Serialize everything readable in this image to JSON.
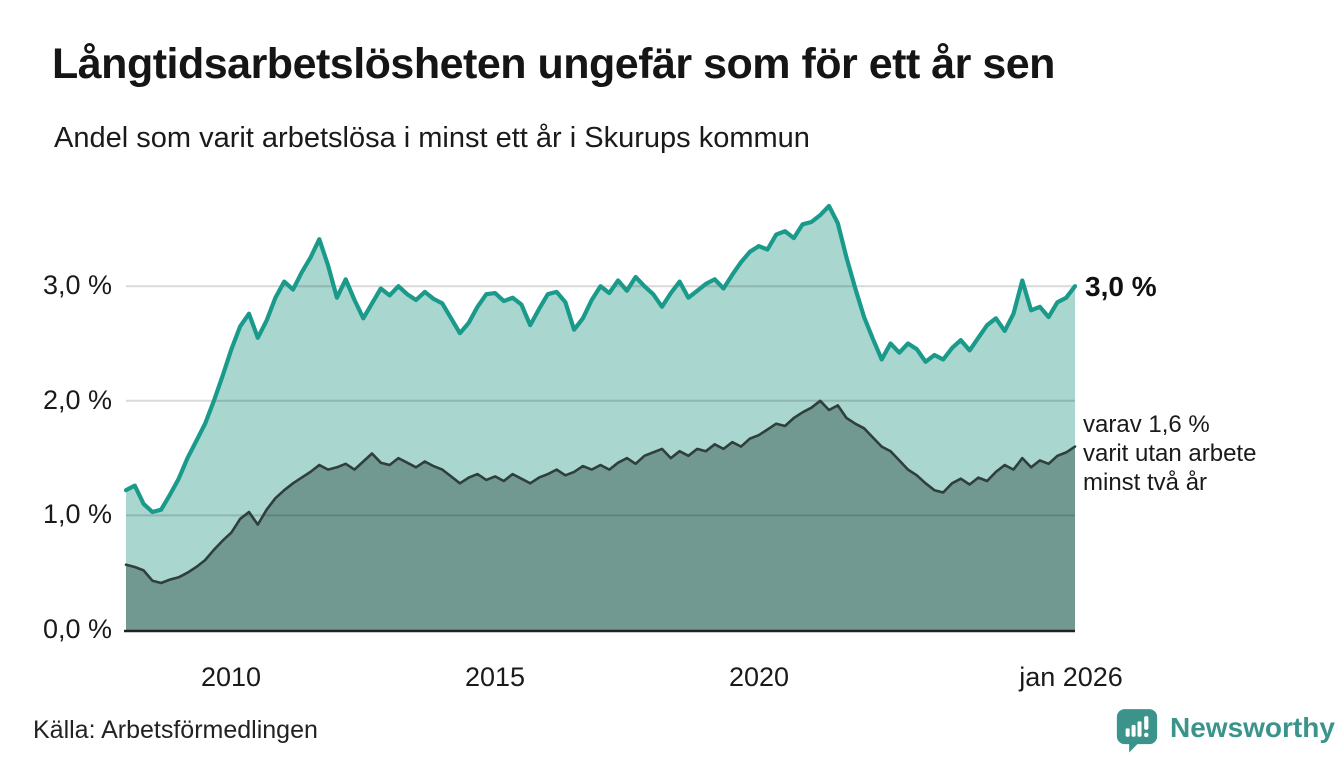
{
  "header": {
    "title": "Långtidsarbetslösheten ungefär som för ett år sen",
    "subtitle": "Andel som varit arbetslösa i minst ett år i Skurups kommun"
  },
  "footer": {
    "source": "Källa: Arbetsförmedlingen",
    "brand": "Newsworthy"
  },
  "colors": {
    "accent_teal": "#1a9a8a",
    "light_fill": "#a9d6cf",
    "dark_fill": "#719992",
    "dark_line": "#2f3f3b",
    "brand_teal": "#3a948c",
    "gridline": "#d8d8d8",
    "axis": "#222222",
    "text": "#1a1a1a"
  },
  "annotations": {
    "primary_end_label": "3,0 %",
    "secondary_line1": "varav 1,6 %",
    "secondary_line2": "varit utan arbete",
    "secondary_line3": "minst två år"
  },
  "chart_data": {
    "type": "area",
    "title": "Långtidsarbetslösheten ungefär som för ett år sen",
    "subtitle": "Andel som varit arbetslösa i minst ett år i Skurups kommun",
    "unit": "%",
    "x_start_year": 2008.0,
    "x_end_year": 2026.0,
    "points_per_year": 6,
    "x_tick_years": [
      2010,
      2015,
      2020,
      2026
    ],
    "x_tick_labels": [
      "2010",
      "2015",
      "2020",
      "jan 2026"
    ],
    "y_ticks": [
      "0,0 %",
      "1,0 %",
      "2,0 %",
      "3,0 %"
    ],
    "y_gridlines": [
      1,
      2,
      3
    ],
    "ylim": [
      0,
      3.75
    ],
    "grid": true,
    "legend": "none",
    "series": [
      {
        "name": "Andel arbetslösa minst ett år",
        "end_value": 3.0,
        "end_label": "3,0 %",
        "line_color": "#1a9a8a",
        "fill_color": "#a9d6cf",
        "values": [
          1.22,
          1.26,
          1.1,
          1.03,
          1.05,
          1.18,
          1.32,
          1.5,
          1.65,
          1.8,
          2.0,
          2.22,
          2.45,
          2.65,
          2.76,
          2.55,
          2.7,
          2.9,
          3.04,
          2.97,
          3.12,
          3.25,
          3.41,
          3.18,
          2.9,
          3.06,
          2.88,
          2.72,
          2.85,
          2.98,
          2.92,
          3.0,
          2.93,
          2.88,
          2.95,
          2.89,
          2.85,
          2.72,
          2.59,
          2.68,
          2.82,
          2.93,
          2.94,
          2.87,
          2.9,
          2.84,
          2.66,
          2.8,
          2.93,
          2.95,
          2.86,
          2.62,
          2.72,
          2.88,
          3.0,
          2.94,
          3.05,
          2.96,
          3.08,
          3.0,
          2.93,
          2.82,
          2.94,
          3.04,
          2.9,
          2.96,
          3.02,
          3.06,
          2.98,
          3.1,
          3.21,
          3.3,
          3.35,
          3.32,
          3.45,
          3.48,
          3.42,
          3.54,
          3.56,
          3.62,
          3.7,
          3.55,
          3.25,
          2.98,
          2.73,
          2.54,
          2.36,
          2.5,
          2.42,
          2.5,
          2.45,
          2.34,
          2.4,
          2.36,
          2.46,
          2.53,
          2.44,
          2.55,
          2.66,
          2.72,
          2.61,
          2.76,
          3.05,
          2.79,
          2.82,
          2.73,
          2.86,
          2.9,
          3.0
        ]
      },
      {
        "name": "varav utan arbete minst två år",
        "end_value": 1.6,
        "end_label": "1,6 %",
        "line_color": "#2f3f3b",
        "fill_color": "#719992",
        "values": [
          0.57,
          0.55,
          0.52,
          0.43,
          0.41,
          0.44,
          0.46,
          0.5,
          0.55,
          0.61,
          0.7,
          0.78,
          0.85,
          0.97,
          1.03,
          0.92,
          1.05,
          1.15,
          1.22,
          1.28,
          1.33,
          1.38,
          1.44,
          1.4,
          1.42,
          1.45,
          1.4,
          1.47,
          1.54,
          1.46,
          1.44,
          1.5,
          1.46,
          1.42,
          1.47,
          1.43,
          1.4,
          1.34,
          1.28,
          1.33,
          1.36,
          1.31,
          1.34,
          1.3,
          1.36,
          1.32,
          1.28,
          1.33,
          1.36,
          1.4,
          1.35,
          1.38,
          1.43,
          1.4,
          1.44,
          1.4,
          1.46,
          1.5,
          1.45,
          1.52,
          1.55,
          1.58,
          1.5,
          1.56,
          1.52,
          1.58,
          1.56,
          1.62,
          1.58,
          1.64,
          1.6,
          1.67,
          1.7,
          1.75,
          1.8,
          1.78,
          1.85,
          1.9,
          1.94,
          2.0,
          1.92,
          1.96,
          1.85,
          1.8,
          1.76,
          1.68,
          1.6,
          1.56,
          1.48,
          1.4,
          1.35,
          1.28,
          1.22,
          1.2,
          1.28,
          1.32,
          1.27,
          1.33,
          1.3,
          1.38,
          1.44,
          1.4,
          1.5,
          1.42,
          1.48,
          1.45,
          1.52,
          1.55,
          1.6
        ]
      }
    ]
  }
}
